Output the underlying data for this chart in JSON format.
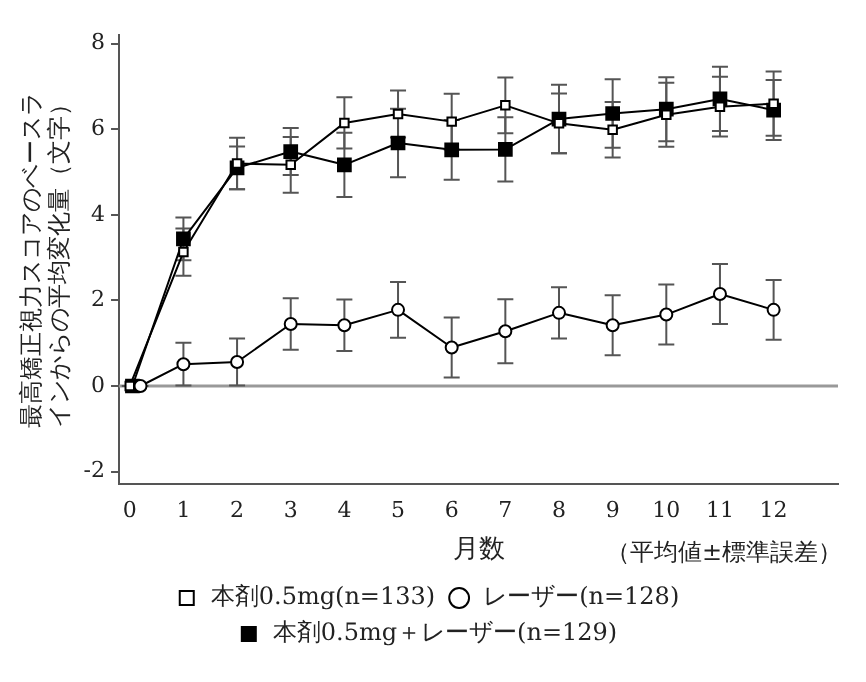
{
  "chart_data": {
    "type": "line",
    "xlabel": "月数",
    "ylabel": "最高矯正視力スコアのベースラインからの平均変化量（文字）",
    "annotations": [
      "（平均値±標準誤差）"
    ],
    "xlim": [
      -0.2,
      13.2
    ],
    "xticks": [
      0,
      1,
      2,
      3,
      4,
      5,
      6,
      7,
      8,
      9,
      10,
      11,
      12
    ],
    "ylim": [
      -2.3,
      8.2
    ],
    "yticks": [
      -2,
      0,
      2,
      4,
      6,
      8
    ],
    "grid": false,
    "legend": "bottom",
    "line_style": "solid",
    "ref_lines": [
      {
        "axis": "y",
        "value": 0,
        "color": "#999999"
      }
    ],
    "series": [
      {
        "name": "本剤0.5mg(n=133)",
        "color": "#000000",
        "marker": "square",
        "x": [
          0,
          1,
          2,
          3,
          4,
          5,
          6,
          7,
          8,
          9,
          10,
          11,
          12
        ],
        "values": [
          0,
          3.13,
          5.2,
          5.17,
          6.15,
          6.36,
          6.18,
          6.56,
          6.14,
          5.99,
          6.34,
          6.53,
          6.6
        ],
        "errors": [
          0,
          0.55,
          0.6,
          0.65,
          0.6,
          0.55,
          0.65,
          0.65,
          0.7,
          0.65,
          0.75,
          0.7,
          0.75
        ]
      },
      {
        "name": "本剤0.5mg＋レーザー(n=129)",
        "color": "#000000",
        "marker": "square",
        "x": [
          0.05,
          1,
          2,
          3,
          4,
          5,
          6,
          7,
          8,
          9,
          10,
          11,
          12
        ],
        "values": [
          0,
          3.44,
          5.1,
          5.48,
          5.17,
          5.68,
          5.52,
          5.53,
          6.24,
          6.37,
          6.47,
          6.71,
          6.45
        ],
        "errors": [
          0,
          0.5,
          0.5,
          0.55,
          0.75,
          0.8,
          0.7,
          0.75,
          0.8,
          0.8,
          0.75,
          0.75,
          0.7
        ]
      },
      {
        "name": "レーザー(n=128)",
        "color": "#000000",
        "marker": "circle",
        "x": [
          0.2,
          1,
          2,
          3,
          4,
          5,
          6,
          7,
          8,
          9,
          10,
          11,
          12
        ],
        "values": [
          0,
          0.51,
          0.56,
          1.45,
          1.42,
          1.78,
          0.9,
          1.28,
          1.71,
          1.42,
          1.67,
          2.15,
          1.78
        ],
        "errors": [
          0,
          0.5,
          0.55,
          0.6,
          0.6,
          0.65,
          0.7,
          0.75,
          0.6,
          0.7,
          0.7,
          0.7,
          0.7
        ]
      }
    ]
  }
}
